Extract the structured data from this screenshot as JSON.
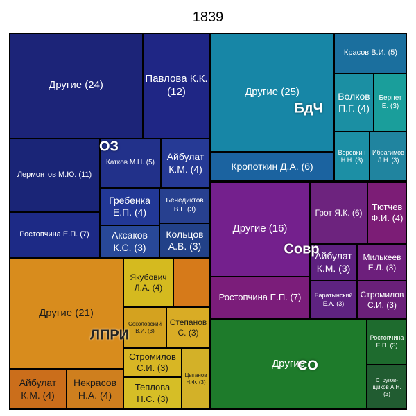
{
  "chart_data": {
    "type": "treemap",
    "title": "1839",
    "groups": [
      {
        "name": "ОЗ",
        "color": "#1d2a7a",
        "items": [
          {
            "label": "Другие (24)",
            "value": 24
          },
          {
            "label": "Павлова К.К. (12)",
            "value": 12
          },
          {
            "label": "Лермонтов М.Ю. (11)",
            "value": 11
          },
          {
            "label": "Ростопчина Е.П. (7)",
            "value": 7
          },
          {
            "label": "Катков М.Н. (5)",
            "value": 5
          },
          {
            "label": "Айбулат К.М. (4)",
            "value": 4
          },
          {
            "label": "Гребенка Е.П. (4)",
            "value": 4
          },
          {
            "label": "Бенедиктов В.Г. (3)",
            "value": 3
          },
          {
            "label": "Аксаков К.С. (3)",
            "value": 3
          },
          {
            "label": "Кольцов А.В. (3)",
            "value": 3
          }
        ]
      },
      {
        "name": "БдЧ",
        "color": "#1c8fb5",
        "items": [
          {
            "label": "Другие (25)",
            "value": 25
          },
          {
            "label": "Красов В.И. (5)",
            "value": 5
          },
          {
            "label": "Волков П.Г. (4)",
            "value": 4
          },
          {
            "label": "Бернет Е. (3)",
            "value": 3
          },
          {
            "label": "Веревкин Н.Н. (3)",
            "value": 3
          },
          {
            "label": "Ибрагимов Л.Н. (3)",
            "value": 3
          },
          {
            "label": "Кропоткин Д.А. (6)",
            "value": 6
          }
        ]
      },
      {
        "name": "ЛПРИ",
        "color": "#d98d1e",
        "items": [
          {
            "label": "Другие (21)",
            "value": 21
          },
          {
            "label": "Якубович Л.А. (4)",
            "value": 4
          },
          {
            "label": "",
            "value": 2
          },
          {
            "label": "Соколовский В.И. (3)",
            "value": 3
          },
          {
            "label": "Степанов С. (3)",
            "value": 3
          },
          {
            "label": "Стромилов С.И. (3)",
            "value": 3
          },
          {
            "label": "Теплова Н.С. (3)",
            "value": 3
          },
          {
            "label": "Цыганов Н.Ф. (3)",
            "value": 3
          },
          {
            "label": "Айбулат К.М. (4)",
            "value": 4
          },
          {
            "label": "Некрасов Н.А. (4)",
            "value": 4
          }
        ]
      },
      {
        "name": "Совр",
        "color": "#7a1f8a",
        "items": [
          {
            "label": "Другие (16)",
            "value": 16
          },
          {
            "label": "Грот Я.К. (6)",
            "value": 6
          },
          {
            "label": "Тютчев Ф.И. (4)",
            "value": 4
          },
          {
            "label": "Айбулат К.М. (3)",
            "value": 3
          },
          {
            "label": "Милькеев Е.Л. (3)",
            "value": 3
          },
          {
            "label": "Баратынский Е.А. (3)",
            "value": 3
          },
          {
            "label": "Стромилов С.И. (3)",
            "value": 3
          },
          {
            "label": "Ростопчина Е.П. (7)",
            "value": 7
          }
        ]
      },
      {
        "name": "СО",
        "color": "#1e7a2a",
        "items": [
          {
            "label": "Другие",
            "value": 20
          },
          {
            "label": "Ростопчина Е.П. (3)",
            "value": 3
          },
          {
            "label": "Стругов­щиков А.Н. (3)",
            "value": 3
          }
        ]
      }
    ]
  }
}
